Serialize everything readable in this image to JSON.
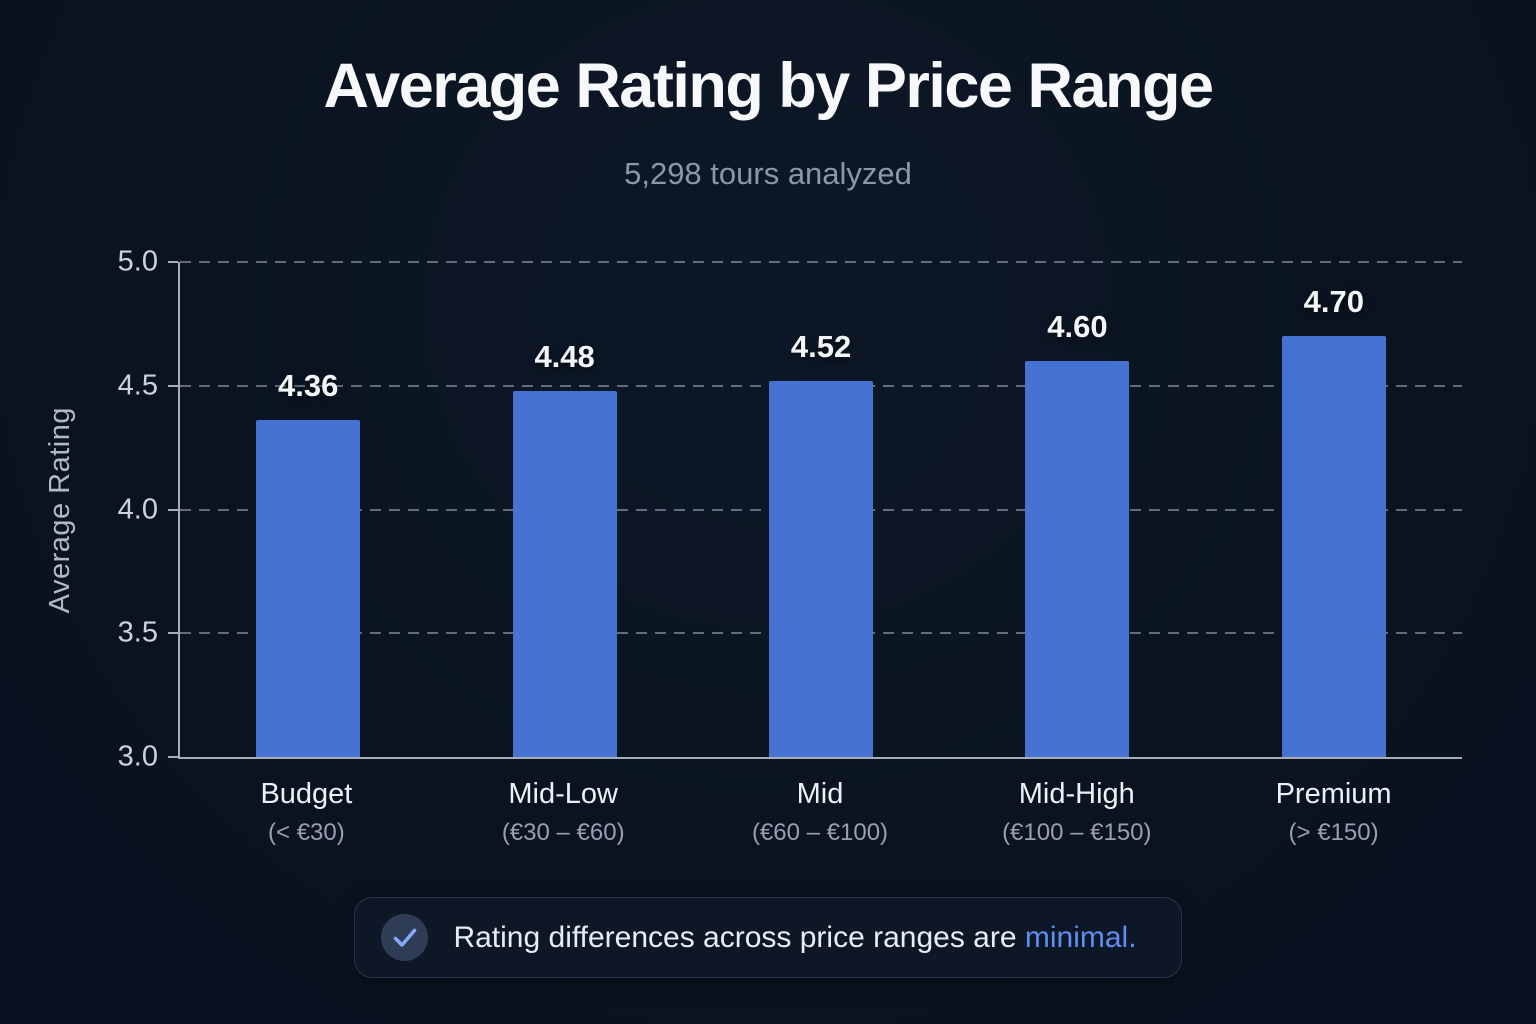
{
  "page": {
    "title": "Average Rating by Price Range",
    "subtitle": "5,298 tours analyzed"
  },
  "chart_data": {
    "type": "bar",
    "title": "Average Rating by Price Range",
    "subtitle": "5,298 tours analyzed",
    "xlabel": "",
    "ylabel": "Average Rating",
    "ylim": [
      3.0,
      5.0
    ],
    "yticks": [
      "5.0",
      "4.5",
      "4.0",
      "3.5",
      "3.0"
    ],
    "grid": "dashed horizontal gridlines at each y tick, legend none",
    "bar_color": "#4673d2",
    "categories": [
      {
        "label": "Budget",
        "range": "(< €30)"
      },
      {
        "label": "Mid-Low",
        "range": "(€30 – €60)"
      },
      {
        "label": "Mid",
        "range": "(€60 – €100)"
      },
      {
        "label": "Mid-High",
        "range": "(€100 – €150)"
      },
      {
        "label": "Premium",
        "range": "(> €150)"
      }
    ],
    "values": [
      4.36,
      4.48,
      4.52,
      4.6,
      4.7
    ],
    "value_labels": [
      "4.36",
      "4.48",
      "4.52",
      "4.60",
      "4.70"
    ]
  },
  "footnote": {
    "icon": "check-icon",
    "text_prefix": "Rating differences across price ranges are ",
    "highlight": "minimal.",
    "highlight_color": "#5f8df2"
  },
  "colors": {
    "background": "#0a1420",
    "bar": "#4673d2",
    "title": "#f6f8fa",
    "subtitle": "#8b96a6",
    "axis_line": "#a7adb8",
    "gridline": "#9ea8b6",
    "tick_label": "#ccd2db",
    "category_label": "#edf0f4",
    "category_range": "#96a0b0",
    "note_background": "#0d1726",
    "note_border": "#28334b",
    "check_circle": "#2e3c56",
    "check_mark": "#85aaf6"
  }
}
